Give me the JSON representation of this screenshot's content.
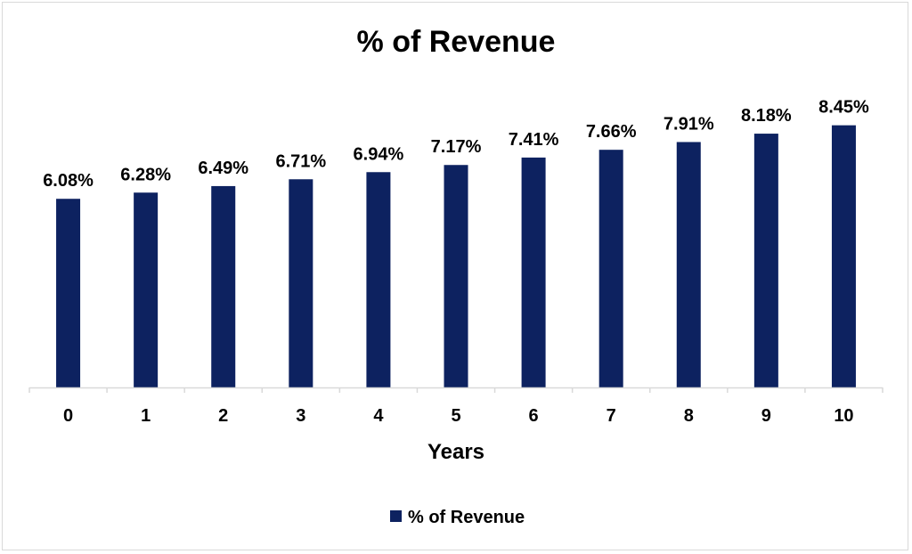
{
  "chart_data": {
    "type": "bar",
    "title": "% of Revenue",
    "xlabel": "Years",
    "ylabel": "",
    "categories": [
      "0",
      "1",
      "2",
      "3",
      "4",
      "5",
      "6",
      "7",
      "8",
      "9",
      "10"
    ],
    "series": [
      {
        "name": "% of Revenue",
        "values": [
          6.08,
          6.28,
          6.49,
          6.71,
          6.94,
          7.17,
          7.41,
          7.66,
          7.91,
          8.18,
          8.45
        ],
        "labels": [
          "6.08%",
          "6.28%",
          "6.49%",
          "6.71%",
          "6.94%",
          "7.17%",
          "7.41%",
          "7.66%",
          "7.91%",
          "8.18%",
          "8.45%"
        ],
        "color": "#0d2260"
      }
    ],
    "ylim": [
      0,
      12
    ],
    "grid": false,
    "legend": "bottom-center"
  }
}
